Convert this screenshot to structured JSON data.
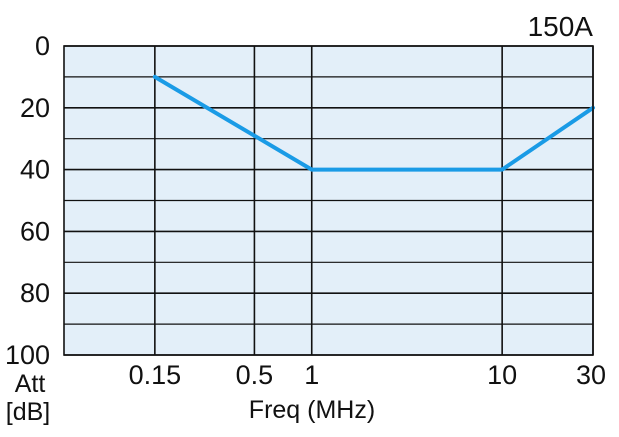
{
  "chart_data": {
    "type": "line",
    "title": "150A",
    "xlabel": "Freq (MHz)",
    "ylabel": "Att",
    "ylabel_unit": "[dB]",
    "x_scale": "log",
    "xlim": [
      0.05,
      30
    ],
    "ylim": [
      0,
      100
    ],
    "y_inverted": true,
    "x_ticks": [
      {
        "value": 0.15,
        "label": "0.15"
      },
      {
        "value": 0.5,
        "label": "0.5"
      },
      {
        "value": 1,
        "label": "1"
      },
      {
        "value": 10,
        "label": "10"
      },
      {
        "value": 30,
        "label": "30"
      }
    ],
    "y_ticks": [
      {
        "value": 0,
        "label": "0"
      },
      {
        "value": 20,
        "label": "20"
      },
      {
        "value": 40,
        "label": "40"
      },
      {
        "value": 60,
        "label": "60"
      },
      {
        "value": 80,
        "label": "80"
      },
      {
        "value": 100,
        "label": "100"
      }
    ],
    "y_minor_grid": [
      10,
      30,
      50,
      70,
      90
    ],
    "grid": true,
    "series": [
      {
        "x": [
          0.15,
          1,
          10,
          30
        ],
        "y": [
          10,
          40,
          40,
          20
        ]
      }
    ],
    "colors": {
      "plot_bg": "#e3eff9",
      "line": "#1a9be6",
      "grid": "#111111"
    }
  }
}
